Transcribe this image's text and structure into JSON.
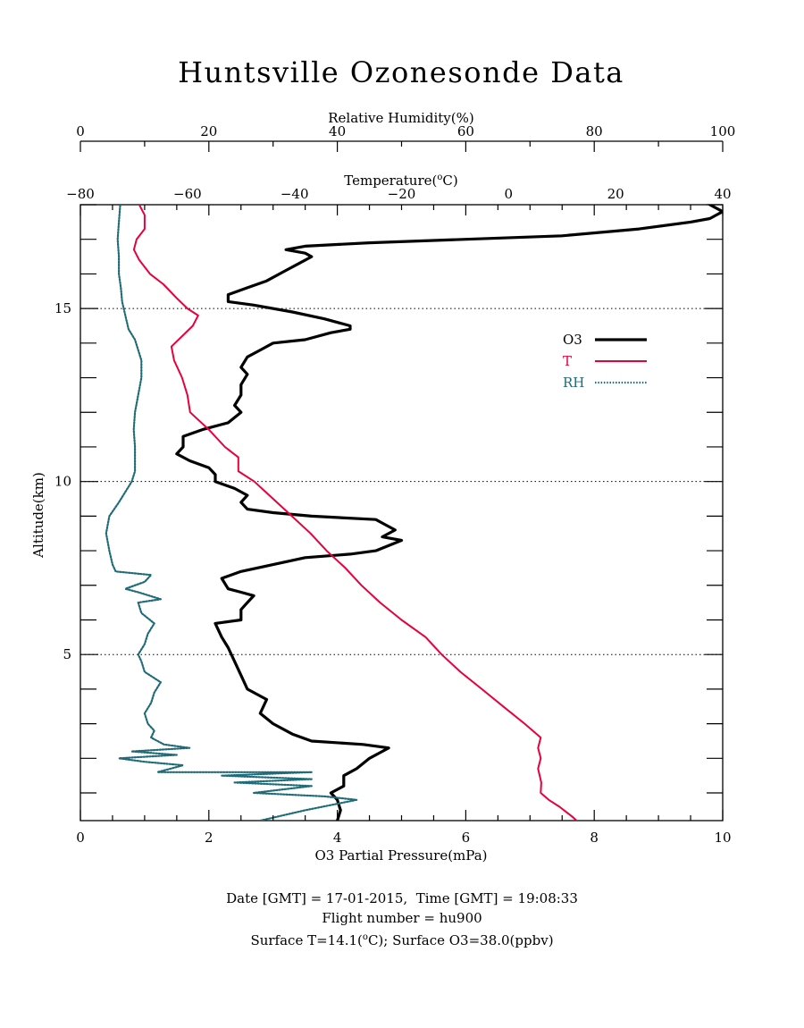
{
  "chart_data": {
    "type": "line",
    "title": "Huntsville Ozonesonde Data",
    "x_axes": {
      "o3": {
        "label": "O3 Partial Pressure(mPa)",
        "range": [
          0,
          10
        ],
        "ticks": [
          "0",
          "2",
          "4",
          "6",
          "8",
          "10"
        ]
      },
      "rh": {
        "label": "Relative Humidity(%)",
        "range": [
          0,
          100
        ],
        "ticks": [
          "0",
          "20",
          "40",
          "60",
          "80",
          "100"
        ]
      },
      "temp": {
        "label_prefix": "Temperature(",
        "label_sup": "o",
        "label_suffix": "C)",
        "range": [
          -80,
          40
        ],
        "ticks": [
          "−80",
          "−60",
          "−40",
          "−20",
          "0",
          "20",
          "40"
        ]
      }
    },
    "y_axis": {
      "label": "Altitude(km)",
      "range": [
        0.2,
        18
      ],
      "ticks": [
        "5",
        "10",
        "15"
      ],
      "tick_values": [
        5,
        10,
        15
      ]
    },
    "grid": "dotted horizontal lines at 5, 10, 15 km",
    "legend": {
      "placement": "right",
      "items": [
        {
          "name": "O3",
          "color": "#000000",
          "style": "solid"
        },
        {
          "name": "T",
          "color": "#e8003c",
          "style": "dash-dot"
        },
        {
          "name": "RH",
          "color": "#1f6b78",
          "style": "dotted"
        }
      ]
    },
    "series": [
      {
        "name": "O3",
        "axis": "o3",
        "units": "mPa",
        "color": "#000000",
        "points": [
          [
            4.0,
            0.2
          ],
          [
            4.05,
            0.5
          ],
          [
            4.0,
            0.8
          ],
          [
            3.9,
            1.0
          ],
          [
            4.1,
            1.2
          ],
          [
            4.1,
            1.5
          ],
          [
            4.3,
            1.7
          ],
          [
            4.5,
            2.0
          ],
          [
            4.7,
            2.2
          ],
          [
            4.8,
            2.3
          ],
          [
            4.4,
            2.4
          ],
          [
            3.6,
            2.5
          ],
          [
            3.3,
            2.7
          ],
          [
            3.0,
            3.0
          ],
          [
            2.8,
            3.3
          ],
          [
            2.9,
            3.7
          ],
          [
            2.6,
            4.0
          ],
          [
            2.5,
            4.4
          ],
          [
            2.4,
            4.8
          ],
          [
            2.3,
            5.2
          ],
          [
            2.2,
            5.5
          ],
          [
            2.1,
            5.9
          ],
          [
            2.5,
            6.0
          ],
          [
            2.5,
            6.3
          ],
          [
            2.6,
            6.5
          ],
          [
            2.7,
            6.7
          ],
          [
            2.5,
            6.8
          ],
          [
            2.3,
            6.9
          ],
          [
            2.2,
            7.2
          ],
          [
            2.5,
            7.4
          ],
          [
            3.0,
            7.6
          ],
          [
            3.5,
            7.8
          ],
          [
            4.2,
            7.9
          ],
          [
            4.6,
            8.0
          ],
          [
            5.0,
            8.3
          ],
          [
            4.7,
            8.4
          ],
          [
            4.9,
            8.6
          ],
          [
            4.7,
            8.8
          ],
          [
            4.6,
            8.9
          ],
          [
            3.6,
            9.0
          ],
          [
            3.0,
            9.1
          ],
          [
            2.6,
            9.2
          ],
          [
            2.5,
            9.4
          ],
          [
            2.6,
            9.6
          ],
          [
            2.4,
            9.8
          ],
          [
            2.1,
            10.0
          ],
          [
            2.1,
            10.2
          ],
          [
            2.0,
            10.4
          ],
          [
            1.7,
            10.6
          ],
          [
            1.5,
            10.8
          ],
          [
            1.6,
            11.0
          ],
          [
            1.6,
            11.3
          ],
          [
            1.9,
            11.5
          ],
          [
            2.3,
            11.7
          ],
          [
            2.5,
            12.0
          ],
          [
            2.4,
            12.2
          ],
          [
            2.5,
            12.5
          ],
          [
            2.5,
            12.8
          ],
          [
            2.6,
            13.1
          ],
          [
            2.5,
            13.3
          ],
          [
            2.6,
            13.6
          ],
          [
            2.8,
            13.8
          ],
          [
            3.0,
            14.0
          ],
          [
            3.5,
            14.1
          ],
          [
            3.9,
            14.3
          ],
          [
            4.2,
            14.4
          ],
          [
            4.2,
            14.5
          ],
          [
            3.8,
            14.7
          ],
          [
            3.3,
            14.9
          ],
          [
            2.7,
            15.1
          ],
          [
            2.3,
            15.2
          ],
          [
            2.3,
            15.4
          ],
          [
            2.6,
            15.6
          ],
          [
            2.9,
            15.8
          ],
          [
            3.2,
            16.1
          ],
          [
            3.4,
            16.3
          ],
          [
            3.6,
            16.5
          ],
          [
            3.5,
            16.6
          ],
          [
            3.2,
            16.7
          ],
          [
            3.5,
            16.8
          ],
          [
            4.5,
            16.9
          ],
          [
            6.0,
            17.0
          ],
          [
            7.5,
            17.1
          ],
          [
            8.7,
            17.3
          ],
          [
            9.5,
            17.5
          ],
          [
            9.8,
            17.6
          ],
          [
            10.0,
            17.8
          ],
          [
            9.8,
            18.0
          ]
        ]
      },
      {
        "name": "T",
        "axis": "temp",
        "units": "°C",
        "color": "#e8003c",
        "points": [
          [
            14.1,
            0.0
          ],
          [
            12.0,
            0.3
          ],
          [
            9.5,
            0.6
          ],
          [
            7.5,
            0.8
          ],
          [
            6.0,
            1.0
          ],
          [
            6.1,
            1.3
          ],
          [
            5.5,
            1.7
          ],
          [
            6.0,
            2.0
          ],
          [
            5.5,
            2.3
          ],
          [
            6.0,
            2.6
          ],
          [
            3.0,
            3.0
          ],
          [
            -1.0,
            3.5
          ],
          [
            -5.0,
            4.0
          ],
          [
            -9.0,
            4.5
          ],
          [
            -12.5,
            5.0
          ],
          [
            -15.5,
            5.5
          ],
          [
            -20.0,
            6.0
          ],
          [
            -24.0,
            6.5
          ],
          [
            -27.5,
            7.0
          ],
          [
            -30.5,
            7.5
          ],
          [
            -34.0,
            8.0
          ],
          [
            -37.0,
            8.5
          ],
          [
            -40.5,
            9.0
          ],
          [
            -44.0,
            9.5
          ],
          [
            -47.5,
            10.0
          ],
          [
            -50.5,
            10.3
          ],
          [
            -50.5,
            10.7
          ],
          [
            -53.0,
            11.0
          ],
          [
            -56.0,
            11.5
          ],
          [
            -59.5,
            12.0
          ],
          [
            -60.0,
            12.5
          ],
          [
            -61.0,
            13.0
          ],
          [
            -62.5,
            13.5
          ],
          [
            -63.0,
            13.9
          ],
          [
            -61.0,
            14.2
          ],
          [
            -59.0,
            14.5
          ],
          [
            -58.0,
            14.8
          ],
          [
            -60.0,
            15.0
          ],
          [
            -62.0,
            15.3
          ],
          [
            -64.5,
            15.7
          ],
          [
            -67.0,
            16.0
          ],
          [
            -69.0,
            16.4
          ],
          [
            -70.0,
            16.7
          ],
          [
            -69.5,
            17.0
          ],
          [
            -68.0,
            17.3
          ],
          [
            -68.0,
            17.7
          ],
          [
            -69.0,
            18.0
          ]
        ]
      },
      {
        "name": "RH",
        "axis": "rh",
        "units": "%",
        "color": "#1f6b78",
        "points": [
          [
            28,
            0.2
          ],
          [
            35,
            0.5
          ],
          [
            43,
            0.8
          ],
          [
            38,
            0.9
          ],
          [
            27,
            1.0
          ],
          [
            36,
            1.2
          ],
          [
            24,
            1.3
          ],
          [
            36,
            1.4
          ],
          [
            22,
            1.5
          ],
          [
            36,
            1.6
          ],
          [
            12,
            1.6
          ],
          [
            16,
            1.8
          ],
          [
            10,
            1.9
          ],
          [
            6,
            2.0
          ],
          [
            15,
            2.1
          ],
          [
            8,
            2.2
          ],
          [
            17,
            2.3
          ],
          [
            13,
            2.4
          ],
          [
            11,
            2.6
          ],
          [
            11.5,
            2.8
          ],
          [
            10.5,
            3.0
          ],
          [
            10,
            3.3
          ],
          [
            11,
            3.6
          ],
          [
            11.5,
            3.9
          ],
          [
            12.5,
            4.2
          ],
          [
            10,
            4.5
          ],
          [
            9.5,
            4.8
          ],
          [
            9,
            5.0
          ],
          [
            10,
            5.3
          ],
          [
            10.5,
            5.6
          ],
          [
            11.5,
            5.9
          ],
          [
            9.5,
            6.2
          ],
          [
            9,
            6.5
          ],
          [
            12.5,
            6.6
          ],
          [
            9,
            6.8
          ],
          [
            7,
            6.9
          ],
          [
            10,
            7.1
          ],
          [
            11,
            7.3
          ],
          [
            5.5,
            7.4
          ],
          [
            5,
            7.6
          ],
          [
            4.5,
            8.0
          ],
          [
            4,
            8.5
          ],
          [
            4.5,
            9.0
          ],
          [
            6,
            9.4
          ],
          [
            7,
            9.7
          ],
          [
            8,
            10.0
          ],
          [
            8.5,
            10.3
          ],
          [
            8.5,
            10.7
          ],
          [
            8.5,
            11.0
          ],
          [
            8.3,
            11.5
          ],
          [
            8.5,
            12.0
          ],
          [
            9,
            12.5
          ],
          [
            9.5,
            13.0
          ],
          [
            9.5,
            13.5
          ],
          [
            9,
            13.8
          ],
          [
            8.5,
            14.1
          ],
          [
            7.5,
            14.4
          ],
          [
            7,
            14.8
          ],
          [
            6.5,
            15.2
          ],
          [
            6.3,
            15.6
          ],
          [
            6,
            16.0
          ],
          [
            6,
            16.5
          ],
          [
            5.8,
            17.0
          ],
          [
            6,
            17.5
          ],
          [
            6.2,
            18.0
          ]
        ]
      }
    ]
  },
  "footer": {
    "line1": "Date [GMT] = 17-01-2015,  Time [GMT] = 19:08:33",
    "line2": "Flight number = hu900",
    "line3_prefix": "Surface T=14.1(",
    "line3_sup": "o",
    "line3_suffix": "C); Surface O3=38.0(ppbv)"
  }
}
